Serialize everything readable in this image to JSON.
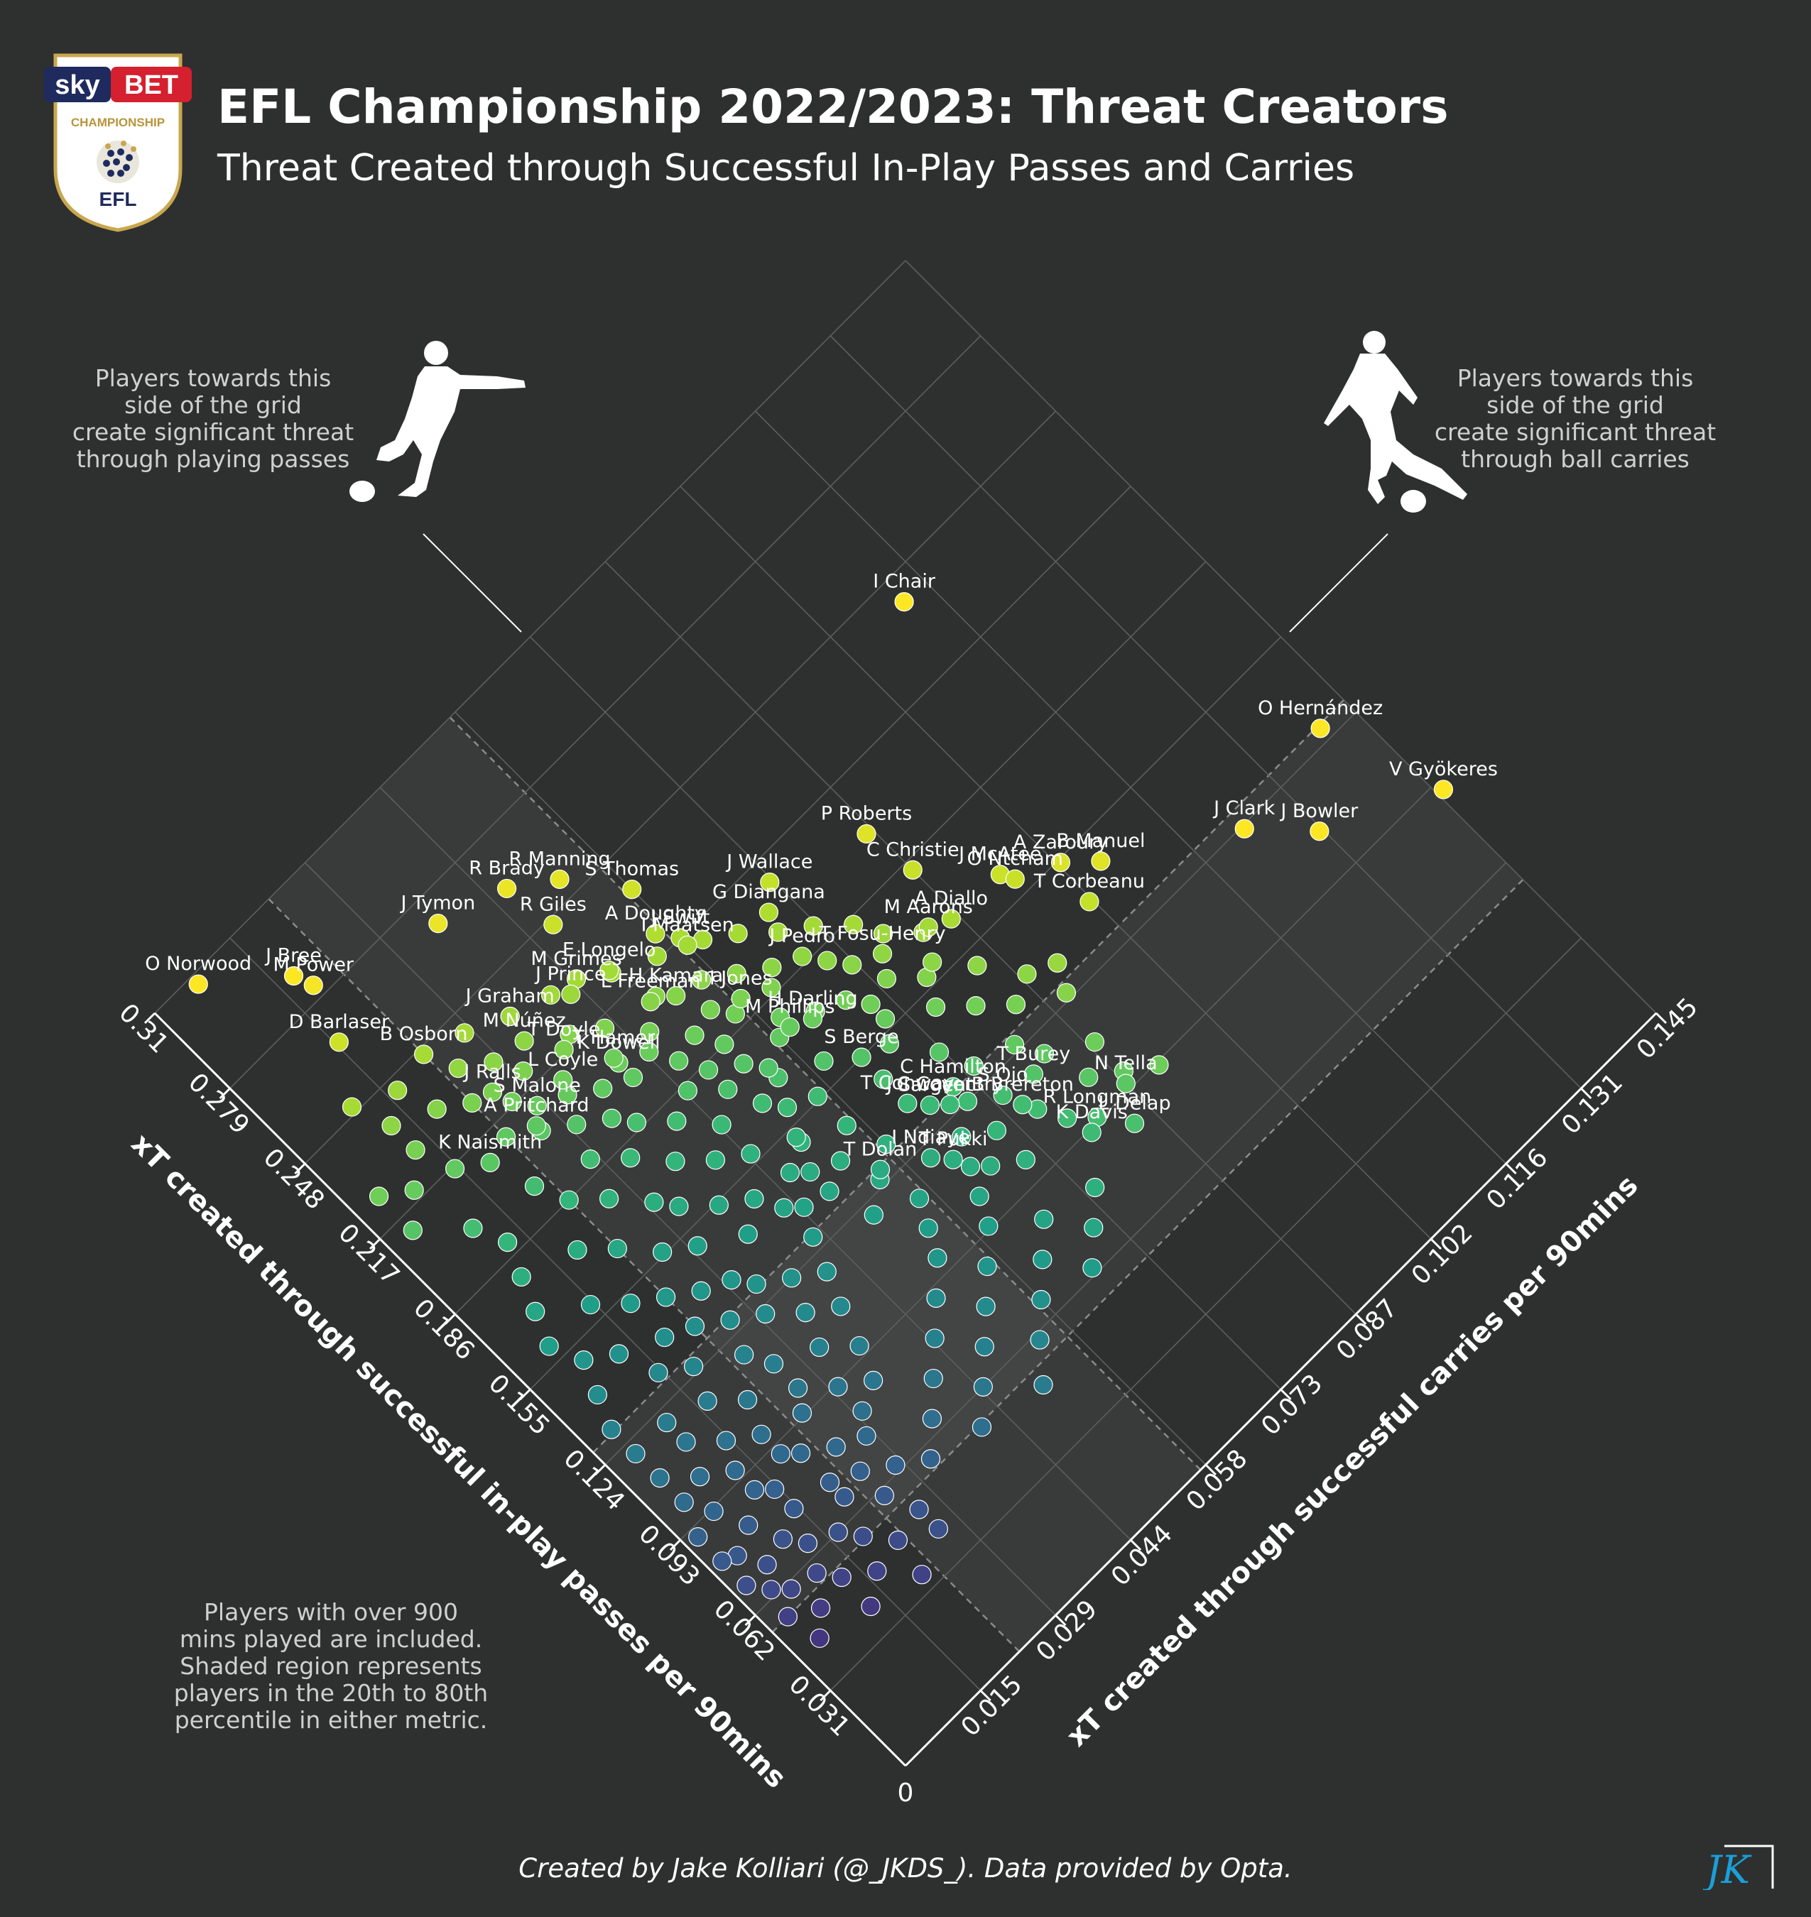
{
  "title": "EFL Championship 2022/2023: Threat Creators",
  "subtitle": "Threat Created through Successful In-Play Passes and Carries",
  "note_left": "Players towards this\nside of the grid\ncreate significant threat\nthrough playing passes",
  "note_right": "Players towards this\nside of the grid\ncreate significant threat\nthrough ball carries",
  "note_bottom": "Players with over 900\nmins played are included.\nShaded region represents\nplayers in the 20th to 80th\npercentile in either metric.",
  "credit": "Created by Jake Kolliari (@_JKDS_). Data provided by Opta.",
  "logo": {
    "brand_sky": "sky",
    "brand_bet": "BET",
    "league": "CHAMPIONSHIP",
    "org": "EFL"
  },
  "signature": "JK",
  "colors": {
    "background": "#2e2f2f",
    "grid": "#5d5e5e",
    "shade": "#404141",
    "text": "#ffffff",
    "note": "#d0d0d0"
  },
  "icons": [
    "player-passing-icon",
    "player-carrying-icon"
  ],
  "chart_data": {
    "type": "scatter",
    "layout": "rotated-diamond",
    "xlabel": "xT created through successful in-play passes per 90mins",
    "ylabel": "xT created through successful carries per 90mins",
    "xlim": [
      0,
      0.31
    ],
    "ylim": [
      0,
      0.145
    ],
    "x_ticks": [
      "0.031",
      "0.062",
      "0.093",
      "0.124",
      "0.155",
      "0.186",
      "0.217",
      "0.248",
      "0.279",
      "0.31"
    ],
    "y_ticks": [
      "0.015",
      "0.029",
      "0.044",
      "0.058",
      "0.073",
      "0.087",
      "0.102",
      "0.116",
      "0.131",
      "0.145"
    ],
    "origin_label": "0",
    "grid": true,
    "shaded_x": [
      0.055,
      0.129
    ],
    "shaded_y": [
      0.022,
      0.057
    ],
    "colormap": "viridis",
    "labeled_points": [
      {
        "name": "I Chair",
        "x": 0.24,
        "y": 0.112
      },
      {
        "name": "O Hernández",
        "x": 0.128,
        "y": 0.14
      },
      {
        "name": "A Zaroury",
        "x": 0.154,
        "y": 0.102
      },
      {
        "name": "B Manuel",
        "x": 0.146,
        "y": 0.106
      },
      {
        "name": "R Brady",
        "x": 0.263,
        "y": 0.046
      },
      {
        "name": "O Norwood",
        "x": 0.307,
        "y": 0.007
      },
      {
        "name": "J Bree",
        "x": 0.289,
        "y": 0.017
      },
      {
        "name": "J Tymon",
        "x": 0.27,
        "y": 0.036
      },
      {
        "name": "M Power",
        "x": 0.283,
        "y": 0.018
      },
      {
        "name": "R Manning",
        "x": 0.254,
        "y": 0.052
      },
      {
        "name": "S Thomas",
        "x": 0.237,
        "y": 0.058
      },
      {
        "name": "R Giles",
        "x": 0.246,
        "y": 0.047
      },
      {
        "name": "P Roberts",
        "x": 0.2,
        "y": 0.086
      },
      {
        "name": "J Wallace",
        "x": 0.21,
        "y": 0.072
      },
      {
        "name": "C Christie",
        "x": 0.183,
        "y": 0.087
      },
      {
        "name": "J McAtee",
        "x": 0.164,
        "y": 0.095
      },
      {
        "name": "G Diangana",
        "x": 0.204,
        "y": 0.069
      },
      {
        "name": "A Doughty",
        "x": 0.223,
        "y": 0.056
      },
      {
        "name": "J Swift",
        "x": 0.217,
        "y": 0.058
      },
      {
        "name": "O Ntcham",
        "x": 0.16,
        "y": 0.096
      },
      {
        "name": "T Corbeanu",
        "x": 0.14,
        "y": 0.101
      },
      {
        "name": "J Clark",
        "x": 0.123,
        "y": 0.123
      },
      {
        "name": "J Bowler",
        "x": 0.107,
        "y": 0.13
      },
      {
        "name": "V Gyökeres",
        "x": 0.09,
        "y": 0.146
      },
      {
        "name": "M Aarons",
        "x": 0.168,
        "y": 0.083
      },
      {
        "name": "M Grimes",
        "x": 0.23,
        "y": 0.044
      },
      {
        "name": "E Longelo",
        "x": 0.225,
        "y": 0.048
      },
      {
        "name": "I Maatsen",
        "x": 0.214,
        "y": 0.058
      },
      {
        "name": "J Pedro",
        "x": 0.188,
        "y": 0.068
      },
      {
        "name": "T Fosu-Henry",
        "x": 0.172,
        "y": 0.076
      },
      {
        "name": "A Diallo",
        "x": 0.165,
        "y": 0.086
      },
      {
        "name": "D Barlaser",
        "x": 0.266,
        "y": 0.015
      },
      {
        "name": "J Graham",
        "x": 0.236,
        "y": 0.034
      },
      {
        "name": "J Prince",
        "x": 0.228,
        "y": 0.042
      },
      {
        "name": "H Kamara",
        "x": 0.206,
        "y": 0.052
      },
      {
        "name": "I Jones",
        "x": 0.192,
        "y": 0.058
      },
      {
        "name": "L Freeman",
        "x": 0.21,
        "y": 0.049
      },
      {
        "name": "B Osborn",
        "x": 0.246,
        "y": 0.022
      },
      {
        "name": "M Núñez",
        "x": 0.228,
        "y": 0.033
      },
      {
        "name": "T Doyle",
        "x": 0.218,
        "y": 0.036
      },
      {
        "name": "K Dowell",
        "x": 0.204,
        "y": 0.04
      },
      {
        "name": "L Coyle",
        "x": 0.212,
        "y": 0.033
      },
      {
        "name": "T Hamer",
        "x": 0.206,
        "y": 0.04
      },
      {
        "name": "M Phillips",
        "x": 0.176,
        "y": 0.06
      },
      {
        "name": "H Darling",
        "x": 0.173,
        "y": 0.063
      },
      {
        "name": "S Berge",
        "x": 0.155,
        "y": 0.064
      },
      {
        "name": "J Ralls",
        "x": 0.224,
        "y": 0.025
      },
      {
        "name": "S Malone",
        "x": 0.212,
        "y": 0.028
      },
      {
        "name": "C Hamilton",
        "x": 0.13,
        "y": 0.07
      },
      {
        "name": "T Burey",
        "x": 0.116,
        "y": 0.079
      },
      {
        "name": "N Tella",
        "x": 0.095,
        "y": 0.087
      },
      {
        "name": "T Conway",
        "x": 0.136,
        "y": 0.064
      },
      {
        "name": "J Sargent",
        "x": 0.131,
        "y": 0.066
      },
      {
        "name": "C Coventry",
        "x": 0.127,
        "y": 0.068
      },
      {
        "name": "S Ojo",
        "x": 0.118,
        "y": 0.074
      },
      {
        "name": "B Brereton",
        "x": 0.112,
        "y": 0.075
      },
      {
        "name": "A Pritchard",
        "x": 0.208,
        "y": 0.026
      },
      {
        "name": "K Naismith",
        "x": 0.21,
        "y": 0.018
      },
      {
        "name": "I Ndiaye",
        "x": 0.12,
        "y": 0.061
      },
      {
        "name": "R Longman",
        "x": 0.094,
        "y": 0.081
      },
      {
        "name": "K Davis",
        "x": 0.092,
        "y": 0.079
      },
      {
        "name": "T Dolan",
        "x": 0.128,
        "y": 0.055
      },
      {
        "name": "T Pukki",
        "x": 0.115,
        "y": 0.063
      },
      {
        "name": "L Delap",
        "x": 0.085,
        "y": 0.084
      }
    ],
    "other_points": [
      [
        0.044,
        0.004
      ],
      [
        0.05,
        0.007
      ],
      [
        0.04,
        0.012
      ],
      [
        0.055,
        0.003
      ],
      [
        0.046,
        0.016
      ],
      [
        0.06,
        0.006
      ],
      [
        0.052,
        0.012
      ],
      [
        0.036,
        0.02
      ],
      [
        0.064,
        0.004
      ],
      [
        0.058,
        0.01
      ],
      [
        0.048,
        0.021
      ],
      [
        0.066,
        0.012
      ],
      [
        0.07,
        0.006
      ],
      [
        0.042,
        0.026
      ],
      [
        0.056,
        0.018
      ],
      [
        0.072,
        0.01
      ],
      [
        0.062,
        0.016
      ],
      [
        0.068,
        0.02
      ],
      [
        0.078,
        0.004
      ],
      [
        0.05,
        0.026
      ],
      [
        0.06,
        0.024
      ],
      [
        0.076,
        0.014
      ],
      [
        0.082,
        0.008
      ],
      [
        0.07,
        0.024
      ],
      [
        0.084,
        0.014
      ],
      [
        0.074,
        0.02
      ],
      [
        0.064,
        0.028
      ],
      [
        0.086,
        0.02
      ],
      [
        0.08,
        0.024
      ],
      [
        0.092,
        0.006
      ],
      [
        0.088,
        0.012
      ],
      [
        0.096,
        0.012
      ],
      [
        0.09,
        0.018
      ],
      [
        0.076,
        0.028
      ],
      [
        0.094,
        0.024
      ],
      [
        0.082,
        0.03
      ],
      [
        0.098,
        0.018
      ],
      [
        0.102,
        0.008
      ],
      [
        0.1,
        0.026
      ],
      [
        0.104,
        0.014
      ],
      [
        0.108,
        0.02
      ],
      [
        0.092,
        0.03
      ],
      [
        0.086,
        0.034
      ],
      [
        0.112,
        0.01
      ],
      [
        0.11,
        0.026
      ],
      [
        0.116,
        0.016
      ],
      [
        0.104,
        0.032
      ],
      [
        0.096,
        0.036
      ],
      [
        0.118,
        0.024
      ],
      [
        0.12,
        0.01
      ],
      [
        0.122,
        0.03
      ],
      [
        0.114,
        0.034
      ],
      [
        0.108,
        0.038
      ],
      [
        0.126,
        0.018
      ],
      [
        0.128,
        0.026
      ],
      [
        0.124,
        0.036
      ],
      [
        0.118,
        0.04
      ],
      [
        0.132,
        0.014
      ],
      [
        0.134,
        0.022
      ],
      [
        0.13,
        0.032
      ],
      [
        0.136,
        0.03
      ],
      [
        0.138,
        0.018
      ],
      [
        0.14,
        0.026
      ],
      [
        0.128,
        0.042
      ],
      [
        0.142,
        0.036
      ],
      [
        0.144,
        0.012
      ],
      [
        0.146,
        0.022
      ],
      [
        0.136,
        0.044
      ],
      [
        0.15,
        0.03
      ],
      [
        0.148,
        0.04
      ],
      [
        0.152,
        0.018
      ],
      [
        0.154,
        0.036
      ],
      [
        0.142,
        0.048
      ],
      [
        0.156,
        0.026
      ],
      [
        0.158,
        0.044
      ],
      [
        0.16,
        0.014
      ],
      [
        0.162,
        0.032
      ],
      [
        0.15,
        0.05
      ],
      [
        0.164,
        0.04
      ],
      [
        0.166,
        0.022
      ],
      [
        0.168,
        0.03
      ],
      [
        0.17,
        0.044
      ],
      [
        0.16,
        0.052
      ],
      [
        0.172,
        0.036
      ],
      [
        0.174,
        0.018
      ],
      [
        0.176,
        0.048
      ],
      [
        0.178,
        0.026
      ],
      [
        0.18,
        0.04
      ],
      [
        0.168,
        0.054
      ],
      [
        0.182,
        0.032
      ],
      [
        0.184,
        0.044
      ],
      [
        0.186,
        0.022
      ],
      [
        0.188,
        0.036
      ],
      [
        0.176,
        0.058
      ],
      [
        0.19,
        0.028
      ],
      [
        0.192,
        0.046
      ],
      [
        0.194,
        0.034
      ],
      [
        0.196,
        0.02
      ],
      [
        0.198,
        0.04
      ],
      [
        0.2,
        0.03
      ],
      [
        0.186,
        0.052
      ],
      [
        0.202,
        0.036
      ],
      [
        0.206,
        0.026
      ],
      [
        0.194,
        0.05
      ],
      [
        0.208,
        0.032
      ],
      [
        0.212,
        0.022
      ],
      [
        0.2,
        0.044
      ],
      [
        0.216,
        0.014
      ],
      [
        0.204,
        0.046
      ],
      [
        0.218,
        0.026
      ],
      [
        0.058,
        0.032
      ],
      [
        0.066,
        0.036
      ],
      [
        0.074,
        0.04
      ],
      [
        0.082,
        0.044
      ],
      [
        0.09,
        0.048
      ],
      [
        0.098,
        0.052
      ],
      [
        0.106,
        0.054
      ],
      [
        0.114,
        0.056
      ],
      [
        0.054,
        0.04
      ],
      [
        0.062,
        0.044
      ],
      [
        0.07,
        0.048
      ],
      [
        0.078,
        0.052
      ],
      [
        0.086,
        0.056
      ],
      [
        0.094,
        0.06
      ],
      [
        0.102,
        0.062
      ],
      [
        0.11,
        0.064
      ],
      [
        0.05,
        0.05
      ],
      [
        0.06,
        0.054
      ],
      [
        0.068,
        0.058
      ],
      [
        0.076,
        0.062
      ],
      [
        0.084,
        0.066
      ],
      [
        0.064,
        0.066
      ],
      [
        0.072,
        0.07
      ],
      [
        0.08,
        0.074
      ],
      [
        0.12,
        0.05
      ],
      [
        0.126,
        0.054
      ],
      [
        0.132,
        0.058
      ],
      [
        0.138,
        0.052
      ],
      [
        0.144,
        0.056
      ],
      [
        0.134,
        0.048
      ],
      [
        0.14,
        0.042
      ],
      [
        0.146,
        0.046
      ],
      [
        0.152,
        0.05
      ],
      [
        0.156,
        0.056
      ],
      [
        0.162,
        0.06
      ],
      [
        0.166,
        0.05
      ],
      [
        0.172,
        0.054
      ],
      [
        0.178,
        0.052
      ],
      [
        0.184,
        0.048
      ],
      [
        0.19,
        0.056
      ],
      [
        0.196,
        0.054
      ],
      [
        0.18,
        0.06
      ],
      [
        0.188,
        0.062
      ],
      [
        0.174,
        0.064
      ],
      [
        0.146,
        0.064
      ],
      [
        0.152,
        0.068
      ],
      [
        0.158,
        0.07
      ],
      [
        0.14,
        0.072
      ],
      [
        0.164,
        0.07
      ],
      [
        0.17,
        0.068
      ],
      [
        0.15,
        0.076
      ],
      [
        0.158,
        0.078
      ],
      [
        0.166,
        0.074
      ],
      [
        0.176,
        0.072
      ],
      [
        0.182,
        0.07
      ],
      [
        0.192,
        0.064
      ],
      [
        0.198,
        0.06
      ],
      [
        0.204,
        0.056
      ],
      [
        0.21,
        0.05
      ],
      [
        0.214,
        0.042
      ],
      [
        0.22,
        0.038
      ],
      [
        0.222,
        0.03
      ],
      [
        0.226,
        0.022
      ],
      [
        0.23,
        0.028
      ],
      [
        0.232,
        0.018
      ],
      [
        0.238,
        0.012
      ],
      [
        0.236,
        0.024
      ],
      [
        0.228,
        0.012
      ],
      [
        0.22,
        0.008
      ],
      [
        0.212,
        0.004
      ],
      [
        0.2,
        0.01
      ],
      [
        0.19,
        0.012
      ],
      [
        0.18,
        0.01
      ],
      [
        0.17,
        0.008
      ],
      [
        0.16,
        0.006
      ],
      [
        0.15,
        0.008
      ],
      [
        0.14,
        0.006
      ],
      [
        0.13,
        0.004
      ],
      [
        0.12,
        0.004
      ],
      [
        0.11,
        0.004
      ],
      [
        0.1,
        0.004
      ],
      [
        0.09,
        0.002
      ],
      [
        0.08,
        0.002
      ],
      [
        0.07,
        0.002
      ],
      [
        0.16,
        0.08
      ],
      [
        0.168,
        0.082
      ],
      [
        0.176,
        0.078
      ],
      [
        0.184,
        0.076
      ],
      [
        0.192,
        0.072
      ],
      [
        0.198,
        0.068
      ],
      [
        0.206,
        0.064
      ],
      [
        0.212,
        0.06
      ],
      [
        0.218,
        0.054
      ],
      [
        0.224,
        0.048
      ],
      [
        0.232,
        0.04
      ],
      [
        0.236,
        0.034
      ],
      [
        0.242,
        0.028
      ],
      [
        0.244,
        0.016
      ],
      [
        0.25,
        0.01
      ],
      [
        0.226,
        0.004
      ],
      [
        0.118,
        0.066
      ],
      [
        0.124,
        0.07
      ],
      [
        0.13,
        0.074
      ],
      [
        0.112,
        0.07
      ],
      [
        0.106,
        0.066
      ],
      [
        0.1,
        0.07
      ],
      [
        0.108,
        0.076
      ],
      [
        0.1,
        0.078
      ],
      [
        0.118,
        0.082
      ],
      [
        0.126,
        0.08
      ],
      [
        0.134,
        0.084
      ],
      [
        0.142,
        0.08
      ],
      [
        0.15,
        0.084
      ],
      [
        0.138,
        0.088
      ],
      [
        0.104,
        0.084
      ],
      [
        0.098,
        0.088
      ],
      [
        0.092,
        0.092
      ],
      [
        0.11,
        0.088
      ],
      [
        0.126,
        0.09
      ],
      [
        0.134,
        0.092
      ]
    ]
  }
}
